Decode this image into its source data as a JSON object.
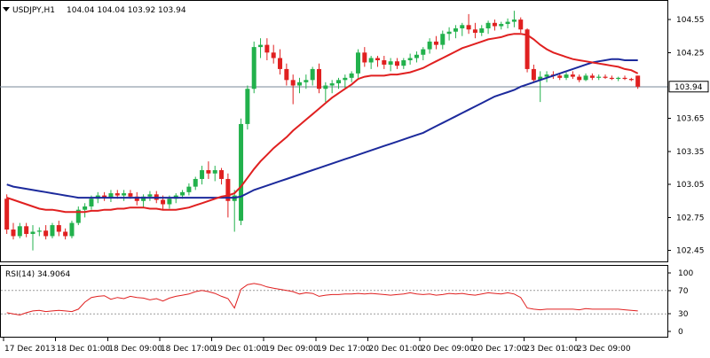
{
  "chart_data": [
    {
      "type": "candlestick",
      "symbol_label": "USDJPY,H1",
      "ohlc_label": "104.04 104.04 103.92 103.94",
      "current_price": 103.94,
      "current_price_label": "103.94",
      "y_range": [
        102.35,
        104.72
      ],
      "y_ticks": [
        104.55,
        104.25,
        103.65,
        103.35,
        103.05,
        102.75,
        102.45
      ],
      "y_tick_labels": [
        "104.55",
        "104.25",
        "103.65",
        "103.35",
        "103.05",
        "102.75",
        "102.45"
      ],
      "up_color": "#22b14c",
      "down_color": "#e02020",
      "candles": [
        [
          102.92,
          102.96,
          102.6,
          102.64
        ],
        [
          102.64,
          102.7,
          102.55,
          102.58
        ],
        [
          102.58,
          102.7,
          102.56,
          102.67
        ],
        [
          102.67,
          102.7,
          102.57,
          102.6
        ],
        [
          102.6,
          102.68,
          102.45,
          102.62
        ],
        [
          102.62,
          102.66,
          102.58,
          102.63
        ],
        [
          102.63,
          102.68,
          102.55,
          102.58
        ],
        [
          102.58,
          102.7,
          102.56,
          102.68
        ],
        [
          102.68,
          102.72,
          102.58,
          102.62
        ],
        [
          102.62,
          102.65,
          102.55,
          102.58
        ],
        [
          102.58,
          102.72,
          102.56,
          102.7
        ],
        [
          102.7,
          102.85,
          102.68,
          102.82
        ],
        [
          102.82,
          102.88,
          102.75,
          102.85
        ],
        [
          102.85,
          102.95,
          102.82,
          102.92
        ],
        [
          102.92,
          102.98,
          102.88,
          102.95
        ],
        [
          102.95,
          102.98,
          102.9,
          102.93
        ],
        [
          102.93,
          103.0,
          102.89,
          102.97
        ],
        [
          102.97,
          103.0,
          102.92,
          102.95
        ],
        [
          102.95,
          103.0,
          102.9,
          102.97
        ],
        [
          102.97,
          103.0,
          102.92,
          102.94
        ],
        [
          102.94,
          102.98,
          102.86,
          102.9
        ],
        [
          102.9,
          102.96,
          102.84,
          102.94
        ],
        [
          102.94,
          102.99,
          102.9,
          102.96
        ],
        [
          102.96,
          102.99,
          102.88,
          102.91
        ],
        [
          102.91,
          102.95,
          102.82,
          102.87
        ],
        [
          102.87,
          102.95,
          102.83,
          102.92
        ],
        [
          102.92,
          102.97,
          102.88,
          102.95
        ],
        [
          102.95,
          103.0,
          102.92,
          102.98
        ],
        [
          102.98,
          103.06,
          102.95,
          103.03
        ],
        [
          103.03,
          103.12,
          103.0,
          103.1
        ],
        [
          103.1,
          103.22,
          103.05,
          103.18
        ],
        [
          103.18,
          103.26,
          103.1,
          103.15
        ],
        [
          103.15,
          103.22,
          103.08,
          103.18
        ],
        [
          103.18,
          103.2,
          103.05,
          103.1
        ],
        [
          103.1,
          103.15,
          102.75,
          102.9
        ],
        [
          102.9,
          103.0,
          102.62,
          102.95
        ],
        [
          102.72,
          103.65,
          102.68,
          103.6
        ],
        [
          103.6,
          103.95,
          103.55,
          103.92
        ],
        [
          103.92,
          104.35,
          103.88,
          104.3
        ],
        [
          104.3,
          104.38,
          104.2,
          104.32
        ],
        [
          104.32,
          104.38,
          104.18,
          104.25
        ],
        [
          104.25,
          104.32,
          104.15,
          104.2
        ],
        [
          104.2,
          104.28,
          104.05,
          104.1
        ],
        [
          104.1,
          104.15,
          103.95,
          104.0
        ],
        [
          104.0,
          104.05,
          103.78,
          103.95
        ],
        [
          103.95,
          104.02,
          103.88,
          103.98
        ],
        [
          103.98,
          104.05,
          103.92,
          104.0
        ],
        [
          104.0,
          104.12,
          103.95,
          104.1
        ],
        [
          104.1,
          104.15,
          103.88,
          103.92
        ],
        [
          103.92,
          103.98,
          103.8,
          103.95
        ],
        [
          103.95,
          104.0,
          103.88,
          103.97
        ],
        [
          103.97,
          104.02,
          103.92,
          104.0
        ],
        [
          104.0,
          104.05,
          103.93,
          104.02
        ],
        [
          104.02,
          104.08,
          103.98,
          104.06
        ],
        [
          104.06,
          104.28,
          104.02,
          104.25
        ],
        [
          104.25,
          104.3,
          104.12,
          104.16
        ],
        [
          104.16,
          104.22,
          104.1,
          104.2
        ],
        [
          104.2,
          104.22,
          104.12,
          104.18
        ],
        [
          104.18,
          104.22,
          104.1,
          104.14
        ],
        [
          104.14,
          104.2,
          104.08,
          104.17
        ],
        [
          104.17,
          104.2,
          104.1,
          104.13
        ],
        [
          104.13,
          104.2,
          104.1,
          104.18
        ],
        [
          104.18,
          104.24,
          104.14,
          104.2
        ],
        [
          104.2,
          104.26,
          104.16,
          104.23
        ],
        [
          104.23,
          104.3,
          104.18,
          104.28
        ],
        [
          104.28,
          104.38,
          104.24,
          104.35
        ],
        [
          104.35,
          104.4,
          104.28,
          104.32
        ],
        [
          104.32,
          104.45,
          104.28,
          104.42
        ],
        [
          104.42,
          104.48,
          104.36,
          104.44
        ],
        [
          104.44,
          104.5,
          104.38,
          104.47
        ],
        [
          104.47,
          104.52,
          104.4,
          104.5
        ],
        [
          104.5,
          104.6,
          104.42,
          104.46
        ],
        [
          104.46,
          104.52,
          104.38,
          104.43
        ],
        [
          104.43,
          104.5,
          104.4,
          104.47
        ],
        [
          104.47,
          104.54,
          104.42,
          104.52
        ],
        [
          104.52,
          104.55,
          104.45,
          104.49
        ],
        [
          104.49,
          104.53,
          104.46,
          104.51
        ],
        [
          104.51,
          104.56,
          104.47,
          104.53
        ],
        [
          104.53,
          104.63,
          104.48,
          104.55
        ],
        [
          104.55,
          104.57,
          104.43,
          104.46
        ],
        [
          104.46,
          104.47,
          104.07,
          104.1
        ],
        [
          104.1,
          104.14,
          103.98,
          104.0
        ],
        [
          104.0,
          104.08,
          103.8,
          104.03
        ],
        [
          104.03,
          104.08,
          103.98,
          104.05
        ],
        [
          104.05,
          104.08,
          104.01,
          104.04
        ],
        [
          104.04,
          104.06,
          104.0,
          104.02
        ],
        [
          104.02,
          104.07,
          104.0,
          104.05
        ],
        [
          104.05,
          104.08,
          104.01,
          104.03
        ],
        [
          104.03,
          104.05,
          103.98,
          104.0
        ],
        [
          104.0,
          104.06,
          103.99,
          104.04
        ],
        [
          104.04,
          104.06,
          104.0,
          104.02
        ],
        [
          104.02,
          104.05,
          104.0,
          104.03
        ],
        [
          104.03,
          104.05,
          104.01,
          104.02
        ],
        [
          104.02,
          104.04,
          104.0,
          104.01
        ],
        [
          104.01,
          104.03,
          103.99,
          104.02
        ],
        [
          104.02,
          104.04,
          104.0,
          104.01
        ],
        [
          104.01,
          104.02,
          103.99,
          104.0
        ],
        [
          104.04,
          104.04,
          103.92,
          103.94
        ]
      ],
      "ma_fast": [
        102.93,
        102.91,
        102.89,
        102.87,
        102.85,
        102.83,
        102.82,
        102.82,
        102.81,
        102.8,
        102.8,
        102.8,
        102.8,
        102.81,
        102.81,
        102.82,
        102.82,
        102.83,
        102.83,
        102.84,
        102.84,
        102.84,
        102.83,
        102.83,
        102.82,
        102.82,
        102.82,
        102.83,
        102.84,
        102.86,
        102.88,
        102.9,
        102.92,
        102.94,
        102.95,
        102.97,
        103.03,
        103.11,
        103.19,
        103.26,
        103.32,
        103.38,
        103.43,
        103.48,
        103.54,
        103.59,
        103.64,
        103.69,
        103.74,
        103.79,
        103.84,
        103.88,
        103.92,
        103.96,
        104.01,
        104.03,
        104.04,
        104.04,
        104.04,
        104.05,
        104.05,
        104.06,
        104.07,
        104.09,
        104.11,
        104.14,
        104.17,
        104.2,
        104.23,
        104.26,
        104.29,
        104.31,
        104.33,
        104.35,
        104.37,
        104.38,
        104.39,
        104.41,
        104.42,
        104.42,
        104.41,
        104.37,
        104.32,
        104.28,
        104.25,
        104.23,
        104.21,
        104.19,
        104.18,
        104.17,
        104.16,
        104.15,
        104.14,
        104.13,
        104.12,
        104.1,
        104.09,
        104.06
      ],
      "ma_slow": [
        103.05,
        103.03,
        103.02,
        103.01,
        103.0,
        102.99,
        102.98,
        102.97,
        102.96,
        102.95,
        102.94,
        102.93,
        102.93,
        102.93,
        102.93,
        102.93,
        102.93,
        102.93,
        102.93,
        102.93,
        102.93,
        102.93,
        102.93,
        102.93,
        102.93,
        102.93,
        102.93,
        102.93,
        102.93,
        102.93,
        102.93,
        102.93,
        102.93,
        102.93,
        102.93,
        102.93,
        102.94,
        102.97,
        103.0,
        103.02,
        103.04,
        103.06,
        103.08,
        103.1,
        103.12,
        103.14,
        103.16,
        103.18,
        103.2,
        103.22,
        103.24,
        103.26,
        103.28,
        103.3,
        103.32,
        103.34,
        103.36,
        103.38,
        103.4,
        103.42,
        103.44,
        103.46,
        103.48,
        103.5,
        103.52,
        103.55,
        103.58,
        103.61,
        103.64,
        103.67,
        103.7,
        103.73,
        103.76,
        103.79,
        103.82,
        103.85,
        103.87,
        103.89,
        103.91,
        103.94,
        103.96,
        103.98,
        104.0,
        104.02,
        104.04,
        104.06,
        104.08,
        104.1,
        104.12,
        104.14,
        104.16,
        104.17,
        104.18,
        104.19,
        104.19,
        104.18,
        104.18,
        104.18
      ],
      "x_labels": [
        "17 Dec 2013",
        "18 Dec 01:00",
        "18 Dec 09:00",
        "18 Dec 17:00",
        "19 Dec 01:00",
        "19 Dec 09:00",
        "19 Dec 17:00",
        "20 Dec 01:00",
        "20 Dec 09:00",
        "20 Dec 17:00",
        "23 Dec 01:00",
        "23 Dec 09:00"
      ],
      "x_label_candle_index": [
        0,
        8,
        16,
        24,
        32,
        40,
        48,
        56,
        64,
        72,
        80,
        88
      ]
    },
    {
      "type": "line",
      "title": "RSI(14) 34.9064",
      "y_range": [
        0,
        100
      ],
      "y_ticks": [
        100,
        70,
        30,
        0
      ],
      "y_tick_labels": [
        "100",
        "70",
        "30",
        "0"
      ],
      "levels": [
        70,
        30
      ],
      "line_color": "#e02020",
      "values": [
        32,
        30,
        28,
        32,
        35,
        36,
        34,
        35,
        36,
        35,
        34,
        38,
        50,
        58,
        60,
        61,
        55,
        58,
        56,
        60,
        58,
        57,
        54,
        56,
        52,
        57,
        60,
        62,
        64,
        68,
        70,
        68,
        65,
        60,
        56,
        40,
        72,
        80,
        82,
        80,
        76,
        74,
        72,
        70,
        68,
        64,
        66,
        65,
        60,
        62,
        63,
        63,
        64,
        64,
        65,
        64,
        65,
        64,
        63,
        62,
        63,
        64,
        66,
        64,
        63,
        64,
        62,
        63,
        65,
        64,
        65,
        63,
        62,
        64,
        66,
        65,
        64,
        66,
        64,
        58,
        40,
        38,
        37,
        38,
        38,
        38,
        38,
        38,
        37,
        39,
        38,
        38,
        38,
        38,
        38,
        37,
        36,
        35
      ]
    }
  ]
}
